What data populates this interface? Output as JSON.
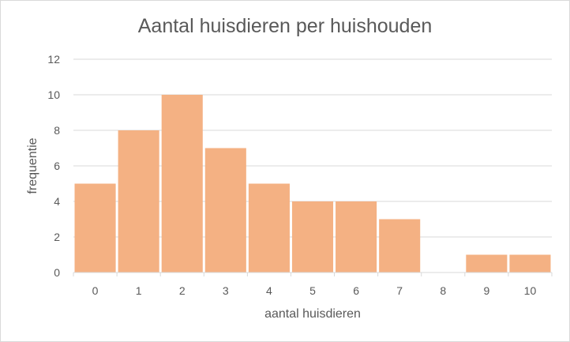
{
  "chart_data": {
    "type": "bar",
    "title": "Aantal huisdieren per huishouden",
    "xlabel": "aantal huisdieren",
    "ylabel": "frequentie",
    "categories": [
      "0",
      "1",
      "2",
      "3",
      "4",
      "5",
      "6",
      "7",
      "8",
      "9",
      "10"
    ],
    "values": [
      5,
      8,
      10,
      7,
      5,
      4,
      4,
      3,
      0,
      1,
      1
    ],
    "ylim": [
      0,
      12
    ],
    "yticks": [
      "0",
      "2",
      "4",
      "6",
      "8",
      "10",
      "12"
    ],
    "grid": true,
    "legend": "none",
    "colors": {
      "bar": "#F4B183",
      "grid": "#d9d9d9",
      "text": "#595959"
    }
  }
}
